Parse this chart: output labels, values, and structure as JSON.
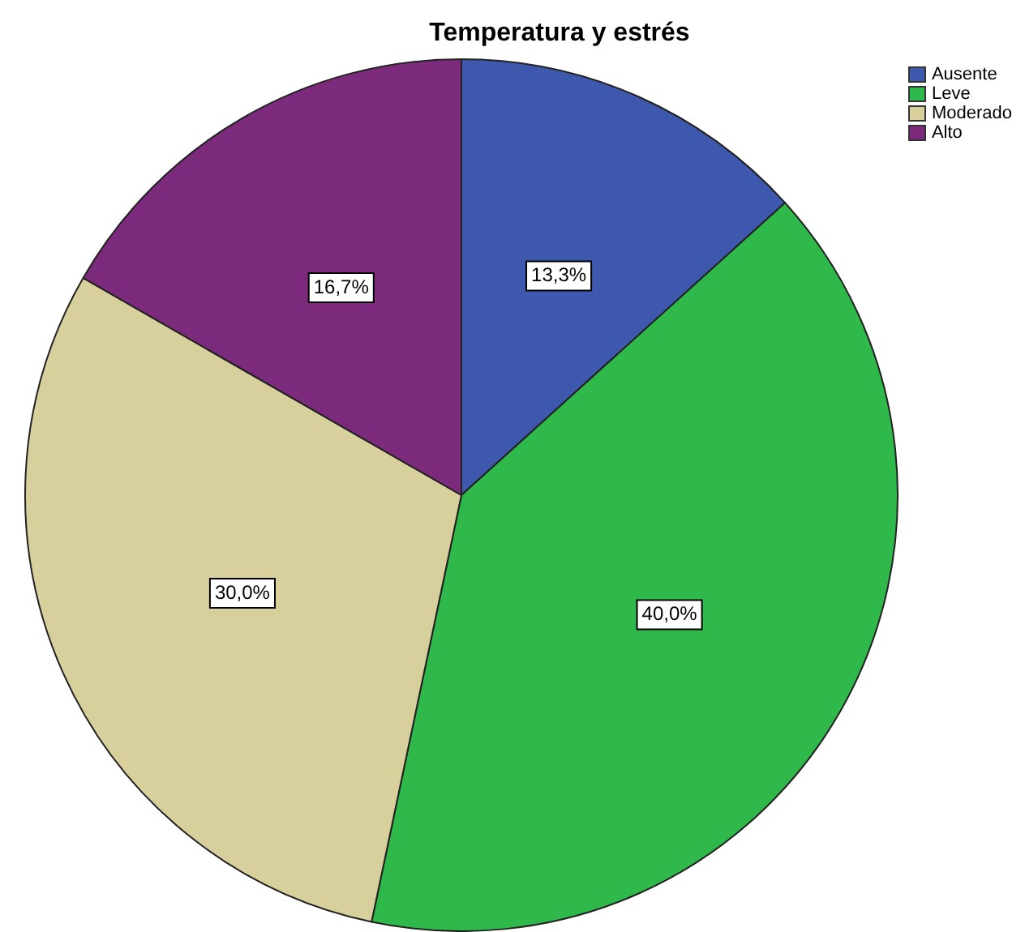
{
  "chart_data": {
    "type": "pie",
    "title": "Temperatura y estrés",
    "categories": [
      "Ausente",
      "Leve",
      "Moderado",
      "Alto"
    ],
    "values": [
      13.3,
      40.0,
      30.0,
      16.7
    ],
    "value_labels": [
      "13,3%",
      "40,0%",
      "30,0%",
      "16,7%"
    ],
    "colors": [
      "#3e58ad",
      "#2fb94b",
      "#d7cf9c",
      "#7c2a7c"
    ],
    "legend": "top right"
  }
}
